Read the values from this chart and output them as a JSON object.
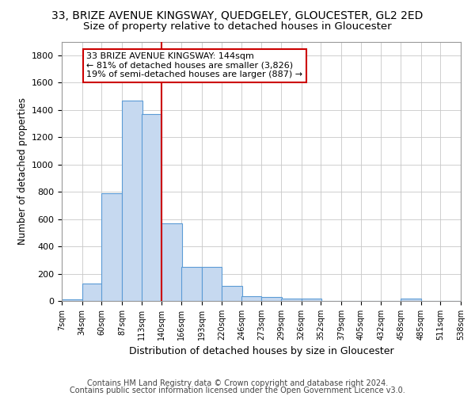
{
  "title_line1": "33, BRIZE AVENUE KINGSWAY, QUEDGELEY, GLOUCESTER, GL2 2ED",
  "title_line2": "Size of property relative to detached houses in Gloucester",
  "xlabel": "Distribution of detached houses by size in Gloucester",
  "ylabel": "Number of detached properties",
  "bar_color": "#c6d9f0",
  "bar_edge_color": "#5b9bd5",
  "marker_line_color": "#cc0000",
  "bins": [
    7,
    34,
    60,
    87,
    113,
    140,
    166,
    193,
    220,
    246,
    273,
    299,
    326,
    352,
    379,
    405,
    432,
    458,
    485,
    511,
    538
  ],
  "bin_labels": [
    "7sqm",
    "34sqm",
    "60sqm",
    "87sqm",
    "113sqm",
    "140sqm",
    "166sqm",
    "193sqm",
    "220sqm",
    "246sqm",
    "273sqm",
    "299sqm",
    "326sqm",
    "352sqm",
    "379sqm",
    "405sqm",
    "432sqm",
    "458sqm",
    "485sqm",
    "511sqm",
    "538sqm"
  ],
  "counts": [
    10,
    130,
    790,
    1470,
    1370,
    570,
    250,
    250,
    110,
    35,
    30,
    20,
    15,
    0,
    0,
    0,
    0,
    20,
    0,
    0,
    0
  ],
  "ylim": [
    0,
    1900
  ],
  "yticks": [
    0,
    200,
    400,
    600,
    800,
    1000,
    1200,
    1400,
    1600,
    1800
  ],
  "annotation_text": "33 BRIZE AVENUE KINGSWAY: 144sqm\n← 81% of detached houses are smaller (3,826)\n19% of semi-detached houses are larger (887) →",
  "annotation_box_color": "#ffffff",
  "annotation_box_edge_color": "#cc0000",
  "footer_line1": "Contains HM Land Registry data © Crown copyright and database right 2024.",
  "footer_line2": "Contains public sector information licensed under the Open Government Licence v3.0.",
  "background_color": "#ffffff",
  "grid_color": "#c8c8c8",
  "title1_fontsize": 10,
  "title2_fontsize": 9.5,
  "ylabel_fontsize": 8.5,
  "xlabel_fontsize": 9,
  "tick_fontsize": 7,
  "footer_fontsize": 7,
  "annotation_fontsize": 8
}
